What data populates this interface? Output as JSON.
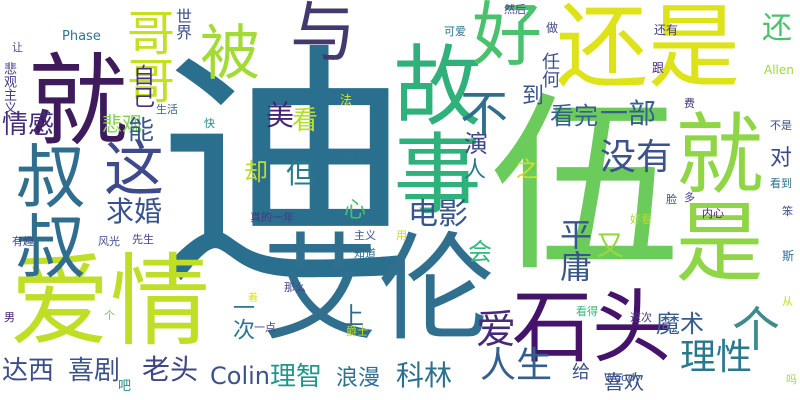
{
  "words": [
    {
      "text": "迪",
      "color": "#2a6f8e"
    },
    {
      "text": "伍",
      "color": "#6ccc5b"
    },
    {
      "text": "艾伦",
      "color": "#30708e"
    },
    {
      "text": "爱情",
      "color": "#bedf26"
    },
    {
      "text": "就是",
      "color": "#8ed645"
    },
    {
      "text": "还是",
      "color": "#dde318"
    },
    {
      "text": "就",
      "color": "#3f1b5d"
    },
    {
      "text": "故事",
      "color": "#30b07a"
    },
    {
      "text": "石头",
      "color": "#45136a"
    },
    {
      "text": "叔叔",
      "color": "#2f6e8e"
    },
    {
      "text": "好",
      "color": "#4ac16d"
    },
    {
      "text": "与",
      "color": "#44396f"
    },
    {
      "text": "哥哥",
      "color": "#c6df22"
    },
    {
      "text": "被",
      "color": "#a2db34"
    },
    {
      "text": "这",
      "color": "#3f4a8a"
    },
    {
      "text": "个",
      "color": "#3d8b8c"
    },
    {
      "text": "爱",
      "color": "#472a7a"
    },
    {
      "text": "人生",
      "color": "#355f8d"
    },
    {
      "text": "理性",
      "color": "#2a788e"
    },
    {
      "text": "没有",
      "color": "#3b528b"
    },
    {
      "text": "电影",
      "color": "#39568c"
    },
    {
      "text": "魔术",
      "color": "#355e8d"
    },
    {
      "text": "科林",
      "color": "#2c728e"
    },
    {
      "text": "情感",
      "color": "#472c7a"
    },
    {
      "text": "悲观",
      "color": "#84d44b"
    },
    {
      "text": "求婚",
      "color": "#3a528b"
    },
    {
      "text": "老头",
      "color": "#404688"
    },
    {
      "text": "达西",
      "color": "#3d4d8a"
    },
    {
      "text": "喜剧",
      "color": "#3b528b"
    },
    {
      "text": "理智",
      "color": "#1f988b"
    },
    {
      "text": "浪漫",
      "color": "#2c728e"
    },
    {
      "text": "Colin",
      "color": "#3b528b"
    },
    {
      "text": "看完",
      "color": "#355f8d"
    },
    {
      "text": "一部",
      "color": "#355f8d"
    },
    {
      "text": "但",
      "color": "#287c8e"
    },
    {
      "text": "却",
      "color": "#bddf26"
    },
    {
      "text": "不",
      "color": "#2e6f8e"
    },
    {
      "text": "平庸",
      "color": "#3a548c"
    },
    {
      "text": "又",
      "color": "#95d840"
    },
    {
      "text": "会",
      "color": "#35b779"
    },
    {
      "text": "上",
      "color": "#2f6c8e"
    },
    {
      "text": "心",
      "color": "#46c06f"
    },
    {
      "text": "演",
      "color": "#3f4788"
    },
    {
      "text": "人",
      "color": "#2a778e"
    },
    {
      "text": "之",
      "color": "#d0e11c"
    },
    {
      "text": "对",
      "color": "#3e4989"
    },
    {
      "text": "还",
      "color": "#4ac16d"
    },
    {
      "text": "美",
      "color": "#482374"
    },
    {
      "text": "能",
      "color": "#39568c"
    },
    {
      "text": "看",
      "color": "#b5de2b"
    },
    {
      "text": "到",
      "color": "#3a548c"
    },
    {
      "text": "任何",
      "color": "#3c508b"
    },
    {
      "text": "自己",
      "color": "#46327e"
    },
    {
      "text": "世界",
      "color": "#3d4e8a"
    },
    {
      "text": "喜欢",
      "color": "#3a548c"
    },
    {
      "text": "一次",
      "color": "#2a778e"
    },
    {
      "text": "悲观主义",
      "color": "#433d84"
    },
    {
      "text": "Phase",
      "color": "#2a768e"
    },
    {
      "text": "可爱",
      "color": "#2c718e"
    },
    {
      "text": "然后",
      "color": "#414487"
    },
    {
      "text": "做",
      "color": "#3f4889"
    },
    {
      "text": "跟",
      "color": "#482878"
    },
    {
      "text": "还有",
      "color": "#443983"
    },
    {
      "text": "Allen",
      "color": "#9bd93c"
    },
    {
      "text": "费",
      "color": "#46327e"
    },
    {
      "text": "不是",
      "color": "#3e4a89"
    },
    {
      "text": "看到",
      "color": "#2e6f8e"
    },
    {
      "text": "脸",
      "color": "#3d4d8a"
    },
    {
      "text": "多",
      "color": "#443a83"
    },
    {
      "text": "内心",
      "color": "#481f70"
    },
    {
      "text": "笨",
      "color": "#3c508b"
    },
    {
      "text": "斯",
      "color": "#2c718e"
    },
    {
      "text": "从",
      "color": "#c2df23"
    },
    {
      "text": "吗",
      "color": "#9dd93b"
    },
    {
      "text": "只",
      "color": "#2e6f8e"
    },
    {
      "text": "法",
      "color": "#e5e419"
    },
    {
      "text": "快",
      "color": "#238a8d"
    },
    {
      "text": "生活",
      "color": "#33638d"
    },
    {
      "text": "完全",
      "color": "#2c728e"
    },
    {
      "text": "真的一年",
      "color": "#443983"
    },
    {
      "text": "主义",
      "color": "#3b528b"
    },
    {
      "text": "知道",
      "color": "#2f6c8e"
    },
    {
      "text": "用",
      "color": "#c5e021"
    },
    {
      "text": "好看",
      "color": "#addc30"
    },
    {
      "text": "有趣",
      "color": "#3e4c8a"
    },
    {
      "text": "风光",
      "color": "#3d4e8a"
    },
    {
      "text": "先生",
      "color": "#433e85"
    },
    {
      "text": "那么",
      "color": "#3e4a89"
    },
    {
      "text": "一点",
      "color": "#3f4788"
    },
    {
      "text": "爵士",
      "color": "#c2df23"
    },
    {
      "text": "看得",
      "color": "#32b67a"
    },
    {
      "text": "这次",
      "color": "#443a83"
    },
    {
      "text": "给",
      "color": "#3b528b"
    },
    {
      "text": "Woody",
      "color": "#3b528b"
    },
    {
      "text": "着",
      "color": "#d8e219"
    },
    {
      "text": "男",
      "color": "#481d6f"
    },
    {
      "text": "个",
      "color": "#6ece58"
    },
    {
      "text": "让",
      "color": "#3c4f8a"
    },
    {
      "text": "吧",
      "color": "#24878e"
    }
  ]
}
